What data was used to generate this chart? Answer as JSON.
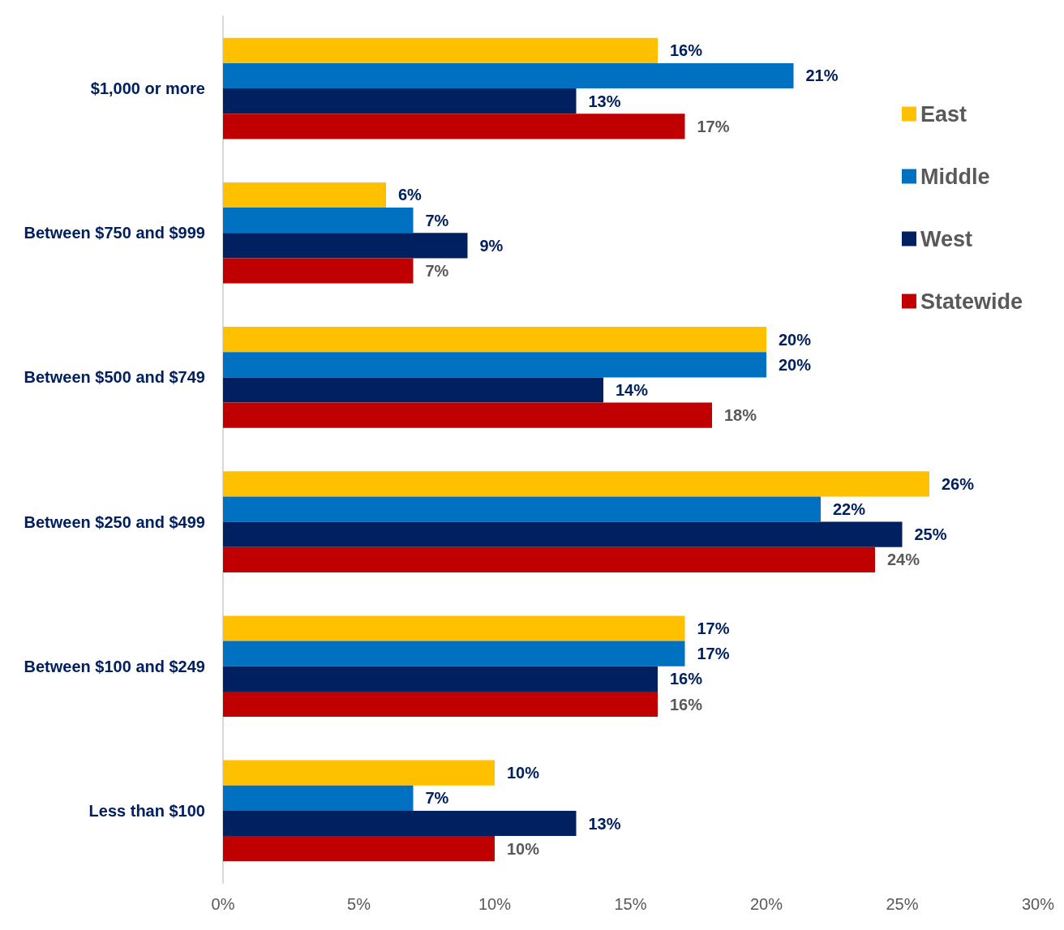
{
  "chart_data": {
    "type": "bar",
    "orientation": "horizontal",
    "categories": [
      "$1,000 or more",
      "Between $750 and $999",
      "Between $500 and $749",
      "Between $250 and $499",
      "Between $100 and $249",
      "Less than $100"
    ],
    "series": [
      {
        "name": "East",
        "color": "#ffc000",
        "values": [
          16,
          6,
          20,
          26,
          17,
          10
        ],
        "value_labels": [
          "16%",
          "6%",
          "20%",
          "26%",
          "17%",
          "10%"
        ]
      },
      {
        "name": "Middle",
        "color": "#0070c0",
        "values": [
          21,
          7,
          20,
          22,
          17,
          7
        ],
        "value_labels": [
          "21%",
          "7%",
          "20%",
          "22%",
          "17%",
          "7%"
        ]
      },
      {
        "name": "West",
        "color": "#002060",
        "values": [
          13,
          9,
          14,
          25,
          16,
          13
        ],
        "value_labels": [
          "13%",
          "9%",
          "14%",
          "25%",
          "16%",
          "13%"
        ]
      },
      {
        "name": "Statewide",
        "color": "#c00000",
        "values": [
          17,
          7,
          18,
          24,
          16,
          10
        ],
        "value_labels": [
          "17%",
          "7%",
          "18%",
          "24%",
          "16%",
          "10%"
        ]
      }
    ],
    "xlim": [
      0,
      30
    ],
    "xticks": [
      {
        "value": 0,
        "label": "0%"
      },
      {
        "value": 5,
        "label": "5%"
      },
      {
        "value": 10,
        "label": "10%"
      },
      {
        "value": 15,
        "label": "15%"
      },
      {
        "value": 20,
        "label": "20%"
      },
      {
        "value": 25,
        "label": "25%"
      },
      {
        "value": 30,
        "label": "30%"
      }
    ],
    "grid": false,
    "legend": "top right"
  }
}
